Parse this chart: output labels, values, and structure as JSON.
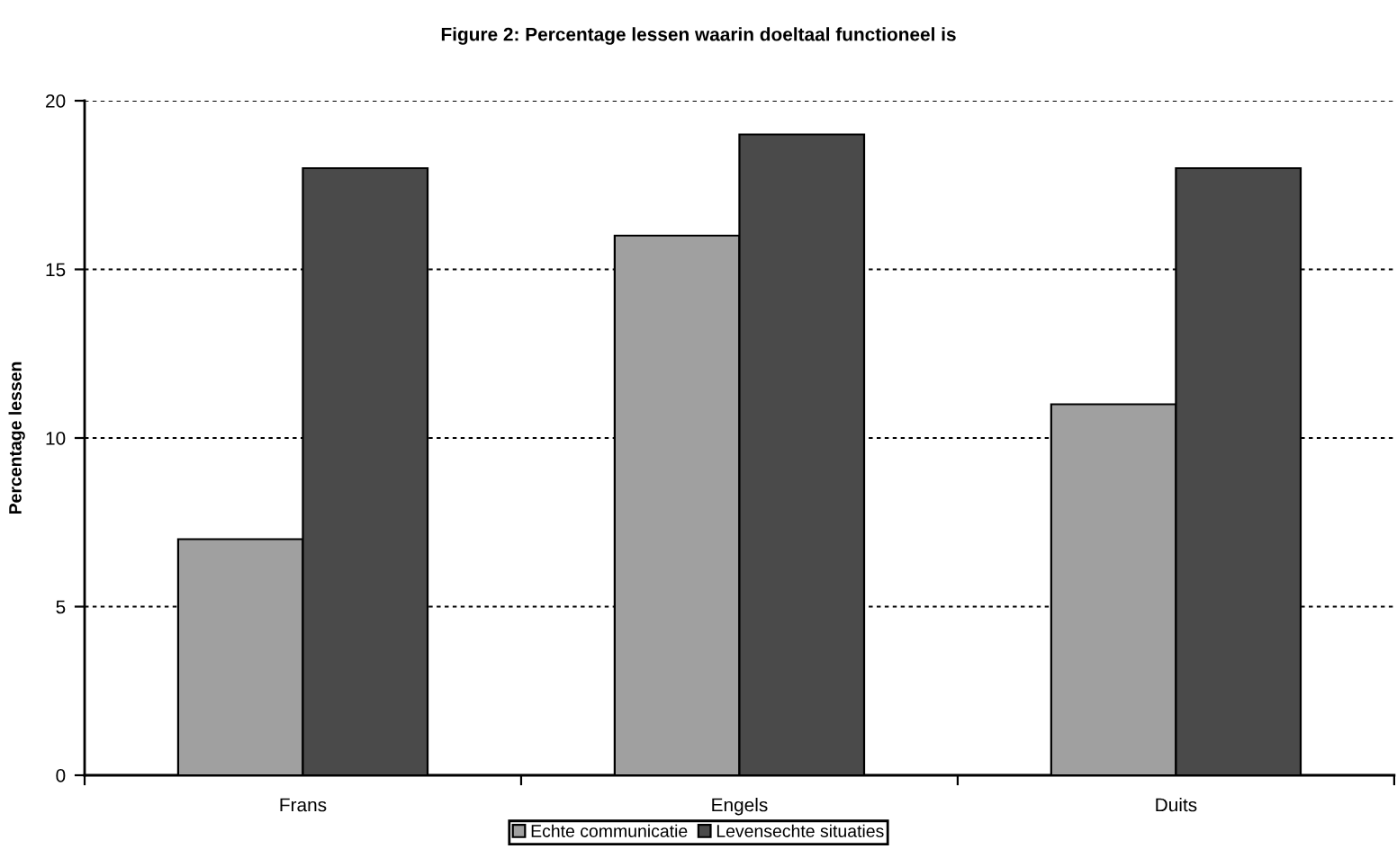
{
  "chart_data": {
    "type": "bar",
    "title": "Figure 2: Percentage lessen waarin doeltaal functioneel is",
    "ylabel": "Percentage lessen",
    "categories": [
      "Frans",
      "Engels",
      "Duits"
    ],
    "series": [
      {
        "name": "Echte communicatie",
        "color": "#a0a0a0",
        "values": [
          7,
          16,
          11
        ]
      },
      {
        "name": "Levensechte situaties",
        "color": "#4a4a4a",
        "values": [
          18,
          19,
          18
        ]
      }
    ],
    "ylim": [
      0,
      20
    ],
    "yticks": [
      0,
      5,
      10,
      15,
      20
    ],
    "grid": "y",
    "legend": "bottom"
  }
}
